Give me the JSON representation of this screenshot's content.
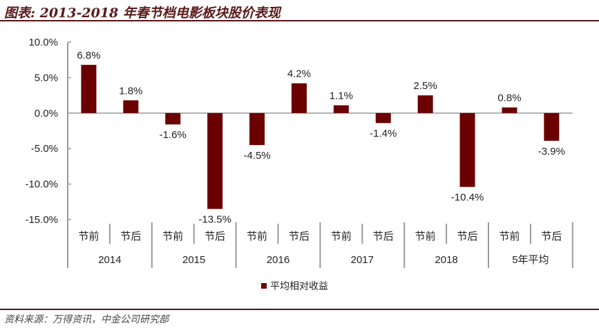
{
  "title": "图表: 2013-2018 年春节档电影板块股价表现",
  "source": "资料来源：万得资讯，中金公司研究部",
  "chart_data": {
    "type": "bar",
    "groups": [
      "2014",
      "2015",
      "2016",
      "2017",
      "2018",
      "5年平均"
    ],
    "subcategories": [
      "节前",
      "节后"
    ],
    "series": [
      {
        "name": "平均相对收益",
        "color": "#6b0000",
        "values": [
          6.8,
          1.8,
          -1.6,
          -13.5,
          -4.5,
          4.2,
          1.1,
          -1.4,
          2.5,
          -10.4,
          0.8,
          -3.9
        ],
        "labels": [
          "6.8%",
          "1.8%",
          "-1.6%",
          "-13.5%",
          "-4.5%",
          "4.2%",
          "1.1%",
          "-1.4%",
          "2.5%",
          "-10.4%",
          "0.8%",
          "-3.9%"
        ]
      }
    ],
    "ylim": [
      -15,
      10
    ],
    "yticks": [
      "10.0%",
      "5.0%",
      "0.0%",
      "-5.0%",
      "-10.0%",
      "-15.0%"
    ],
    "ytick_values": [
      10,
      5,
      0,
      -5,
      -10,
      -15
    ],
    "grid": false,
    "legend": "bottom"
  }
}
